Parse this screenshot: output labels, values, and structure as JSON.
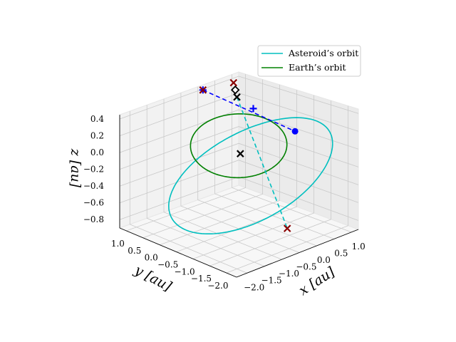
{
  "chart_data": {
    "type": "line",
    "projection": "3d",
    "title": "",
    "xlabel": "$x$ [au]",
    "ylabel": "$y$ [au]",
    "zlabel": "$z$ [au]",
    "xlabel_text": "x [au]",
    "ylabel_text": "y [au]",
    "zlabel_text": "z [au]",
    "xlim": [
      -2.3,
      1.2
    ],
    "ylim": [
      -2.3,
      1.2
    ],
    "zlim": [
      -0.9,
      0.45
    ],
    "xticks": [
      -2.0,
      -1.5,
      -1.0,
      -0.5,
      0.0,
      0.5,
      1.0
    ],
    "xtick_labels": [
      "−2.0",
      "−1.5",
      "−1.0",
      "−0.5",
      "0.0",
      "0.5",
      "1.0"
    ],
    "yticks": [
      1.0,
      0.5,
      0.0,
      -0.5,
      -1.0,
      -1.5,
      -2.0
    ],
    "ytick_labels": [
      "1.0",
      "0.5",
      "0.0",
      "−0.5",
      "−1.0",
      "−1.5",
      "−2.0"
    ],
    "zticks": [
      0.4,
      0.2,
      0.0,
      -0.2,
      -0.4,
      -0.6,
      -0.8
    ],
    "ztick_labels": [
      "0.4",
      "0.2",
      "0.0",
      "−0.2",
      "−0.4",
      "−0.6",
      "−0.8"
    ],
    "grid": true,
    "legend": "top-right",
    "view": {
      "elev": 20,
      "azim": -135
    },
    "series": [
      {
        "name": "Asteroid’s orbit",
        "color": "#00bfbf",
        "style": "solid",
        "kind": "ellipse",
        "center": [
          -0.3,
          -0.65,
          -0.3
        ],
        "u": [
          1.2,
          -1.2,
          0.35
        ],
        "v": [
          0.5,
          0.5,
          0.42
        ]
      },
      {
        "name": "Earth’s orbit",
        "color": "#008000",
        "style": "solid",
        "kind": "ellipse",
        "center": [
          0,
          0,
          -0.08
        ],
        "u": [
          1,
          0,
          0.12
        ],
        "v": [
          0,
          1,
          0.12
        ]
      }
    ],
    "dashed_lines": [
      {
        "color": "#0000ff",
        "from": [
          -0.25,
          0.8,
          0.5
        ],
        "to": [
          0.9,
          -0.75,
          0.05
        ]
      },
      {
        "color": "#00bfbf",
        "from": [
          0.1,
          0.15,
          0.45
        ],
        "to": [
          -0.6,
          -2.05,
          -0.65
        ]
      }
    ],
    "markers": [
      {
        "shape": "plus",
        "color": "#0000ff",
        "point": [
          -0.25,
          0.8,
          0.5
        ]
      },
      {
        "shape": "x",
        "color": "#8b0000",
        "point": [
          -0.25,
          0.8,
          0.5
        ]
      },
      {
        "shape": "plus",
        "color": "#0000ff",
        "point": [
          0.38,
          -0.05,
          0.3
        ]
      },
      {
        "shape": "circle",
        "color": "#0000ff",
        "point": [
          0.9,
          -0.75,
          0.05
        ]
      },
      {
        "shape": "x",
        "color": "#8b0000",
        "point": [
          0.3,
          0.45,
          0.55
        ]
      },
      {
        "shape": "diamond-open",
        "color": "#000000",
        "point": [
          0.2,
          0.3,
          0.5
        ]
      },
      {
        "shape": "x",
        "color": "#000000",
        "point": [
          0.1,
          0.15,
          0.45
        ]
      },
      {
        "shape": "x",
        "color": "#000000",
        "point": [
          0.0,
          -0.05,
          -0.17
        ]
      },
      {
        "shape": "x",
        "color": "#8b0000",
        "point": [
          -0.6,
          -2.05,
          -0.65
        ]
      }
    ]
  }
}
